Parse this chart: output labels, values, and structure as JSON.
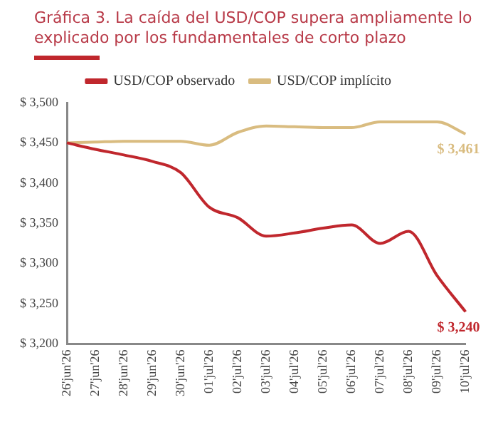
{
  "chart_data": {
    "type": "line",
    "title": "Gráfica 3. La caída del USD/COP supera ampliamente lo explicado por los fundamentales de corto plazo",
    "categories": [
      "26'jun'26",
      "27'jun'26",
      "28'jun'26",
      "29'jun'26",
      "30'jun'26",
      "01'jul'26",
      "02'jul'26",
      "03'jul'26",
      "04'jul'26",
      "05'jul'26",
      "06'jul'26",
      "07'jul'26",
      "08'jul'26",
      "09'jul'26",
      "10'jul'26"
    ],
    "series": [
      {
        "name": "USD/COP observado",
        "color": "#c0272d",
        "values": [
          3450,
          3442,
          3435,
          3427,
          3413,
          3370,
          3357,
          3334,
          3338,
          3344,
          3348,
          3325,
          3340,
          3285,
          3240
        ]
      },
      {
        "name": "USD/COP implícito",
        "color": "#d9bc80",
        "values": [
          3450,
          3451,
          3452,
          3452,
          3452,
          3447,
          3463,
          3471,
          3470,
          3469,
          3469,
          3476,
          3476,
          3476,
          3461
        ]
      }
    ],
    "ylim": [
      3200,
      3500
    ],
    "yticks": [
      {
        "value": 3200,
        "label": "$ 3,200"
      },
      {
        "value": 3250,
        "label": "$ 3,250"
      },
      {
        "value": 3300,
        "label": "$ 3,300"
      },
      {
        "value": 3350,
        "label": "$ 3,350"
      },
      {
        "value": 3400,
        "label": "$ 3,400"
      },
      {
        "value": 3450,
        "label": "$ 3,450"
      },
      {
        "value": 3500,
        "label": "$ 3,500"
      }
    ],
    "grid": false,
    "legend": "top",
    "marker": "none",
    "line_style": "solid",
    "annotations": [
      {
        "text": "$ 3,461",
        "x": "10'jul'26",
        "y": 3461
      },
      {
        "text": "$ 3,240",
        "x": "10'jul'26",
        "y": 3240
      }
    ]
  }
}
